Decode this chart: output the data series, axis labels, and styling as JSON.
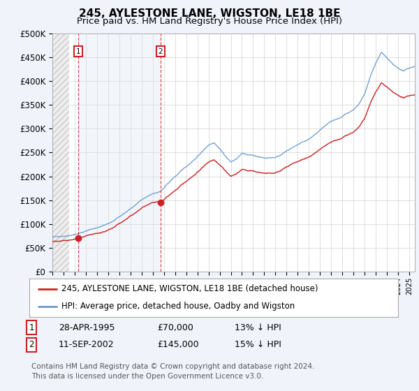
{
  "title": "245, AYLESTONE LANE, WIGSTON, LE18 1BE",
  "subtitle": "Price paid vs. HM Land Registry's House Price Index (HPI)",
  "ylim": [
    0,
    500000
  ],
  "yticks": [
    0,
    50000,
    100000,
    150000,
    200000,
    250000,
    300000,
    350000,
    400000,
    450000,
    500000
  ],
  "ytick_labels": [
    "£0",
    "£50K",
    "£100K",
    "£150K",
    "£200K",
    "£250K",
    "£300K",
    "£350K",
    "£400K",
    "£450K",
    "£500K"
  ],
  "hpi_color": "#6699cc",
  "price_color": "#cc2222",
  "sale1_date": 1995.32,
  "sale1_price": 70000,
  "sale2_date": 2002.7,
  "sale2_price": 145000,
  "legend_label1": "245, AYLESTONE LANE, WIGSTON, LE18 1BE (detached house)",
  "legend_label2": "HPI: Average price, detached house, Oadby and Wigston",
  "table_row1": [
    "1",
    "28-APR-1995",
    "£70,000",
    "13% ↓ HPI"
  ],
  "table_row2": [
    "2",
    "11-SEP-2002",
    "£145,000",
    "15% ↓ HPI"
  ],
  "footnote": "Contains HM Land Registry data © Crown copyright and database right 2024.\nThis data is licensed under the Open Government Licence v3.0.",
  "bg_color": "#f0f4fa",
  "plot_bg": "#ffffff",
  "shade_color": "#dce8f5",
  "grid_color": "#cccccc",
  "title_fontsize": 11,
  "subtitle_fontsize": 9.5,
  "axis_fontsize": 8.5,
  "legend_fontsize": 8.5,
  "table_fontsize": 9,
  "footnote_fontsize": 7.5
}
